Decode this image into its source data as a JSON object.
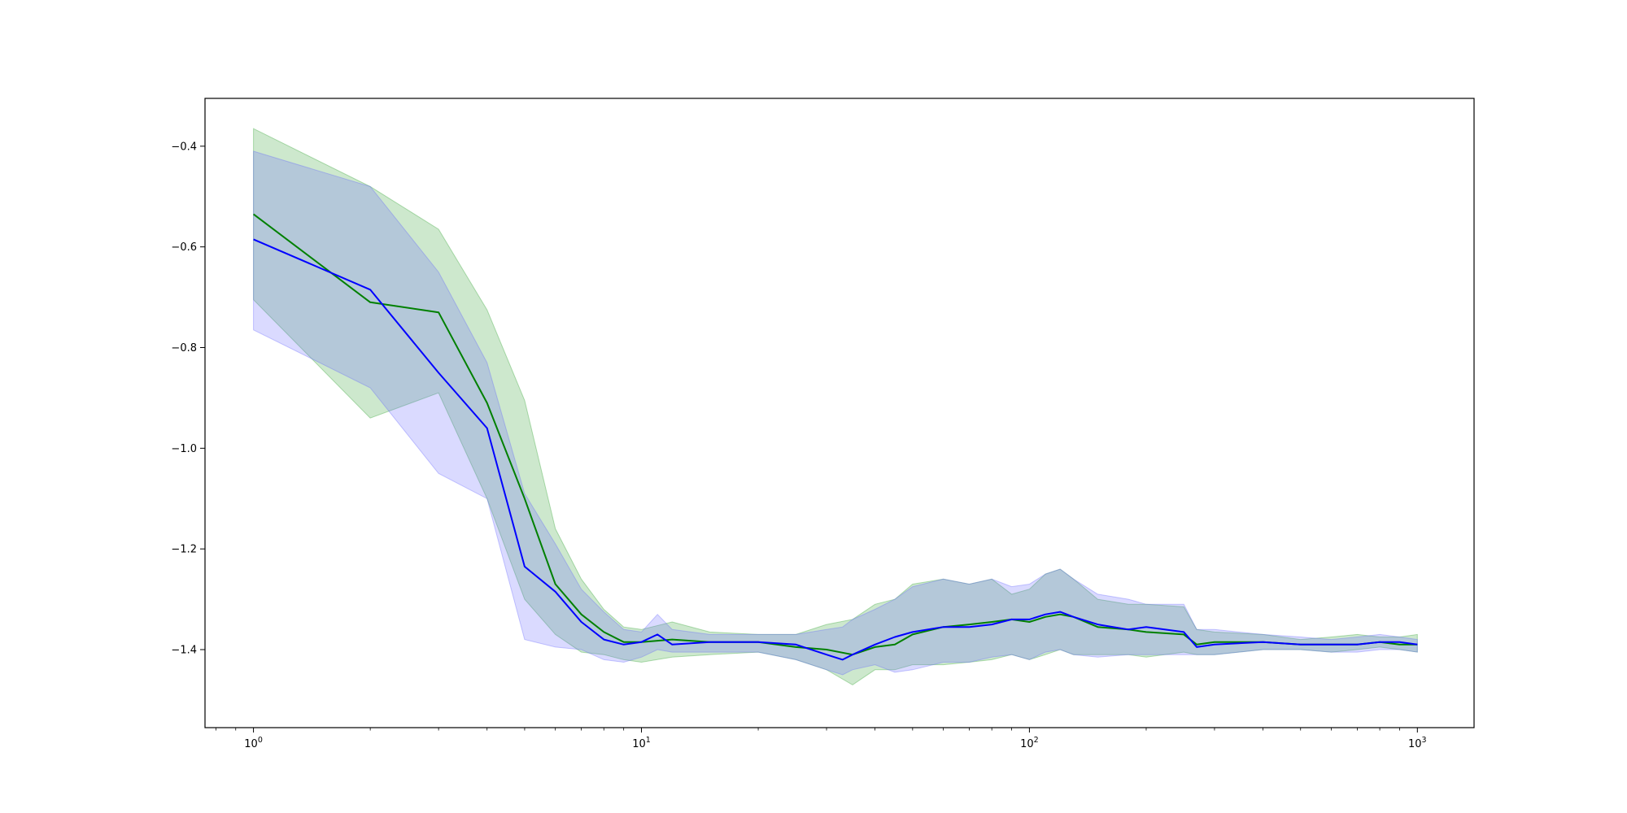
{
  "chart_data": {
    "type": "line",
    "title": "",
    "xlabel": "",
    "ylabel": "",
    "xscale": "log",
    "xlim": [
      0.75,
      1400
    ],
    "ylim": [
      -1.555,
      -0.305
    ],
    "grid": false,
    "legend": "none",
    "xticks": [
      {
        "value": 1,
        "label": "10",
        "exp": "0"
      },
      {
        "value": 10,
        "label": "10",
        "exp": "1"
      },
      {
        "value": 100,
        "label": "10",
        "exp": "2"
      },
      {
        "value": 1000,
        "label": "10",
        "exp": "3"
      }
    ],
    "yticks": [
      {
        "value": -0.4,
        "label": "−0.4"
      },
      {
        "value": -0.6,
        "label": "−0.6"
      },
      {
        "value": -0.8,
        "label": "−0.8"
      },
      {
        "value": -1.0,
        "label": "−1.0"
      },
      {
        "value": -1.2,
        "label": "−1.2"
      },
      {
        "value": -1.4,
        "label": "−1.4"
      }
    ],
    "series": [
      {
        "color": "#008000",
        "band_color": "#2ca02c",
        "x": [
          1,
          2,
          3,
          4,
          5,
          6,
          7,
          8,
          9,
          10,
          12,
          15,
          20,
          25,
          30,
          35,
          40,
          45,
          50,
          60,
          70,
          80,
          90,
          100,
          110,
          120,
          130,
          150,
          180,
          200,
          250,
          270,
          300,
          400,
          500,
          600,
          700,
          800,
          900,
          1000
        ],
        "mean": [
          -0.535,
          -0.71,
          -0.73,
          -0.91,
          -1.1,
          -1.27,
          -1.33,
          -1.365,
          -1.385,
          -1.385,
          -1.38,
          -1.385,
          -1.385,
          -1.395,
          -1.4,
          -1.41,
          -1.395,
          -1.39,
          -1.37,
          -1.355,
          -1.35,
          -1.345,
          -1.34,
          -1.345,
          -1.335,
          -1.33,
          -1.335,
          -1.355,
          -1.36,
          -1.365,
          -1.37,
          -1.39,
          -1.385,
          -1.385,
          -1.39,
          -1.39,
          -1.39,
          -1.385,
          -1.39,
          -1.39
        ],
        "upper": [
          -0.365,
          -0.48,
          -0.565,
          -0.725,
          -0.905,
          -1.16,
          -1.26,
          -1.32,
          -1.355,
          -1.36,
          -1.345,
          -1.365,
          -1.37,
          -1.37,
          -1.35,
          -1.34,
          -1.31,
          -1.3,
          -1.27,
          -1.26,
          -1.27,
          -1.26,
          -1.29,
          -1.28,
          -1.25,
          -1.24,
          -1.26,
          -1.3,
          -1.31,
          -1.31,
          -1.315,
          -1.36,
          -1.365,
          -1.37,
          -1.38,
          -1.375,
          -1.37,
          -1.375,
          -1.375,
          -1.37
        ],
        "lower": [
          -0.705,
          -0.94,
          -0.89,
          -1.1,
          -1.3,
          -1.37,
          -1.405,
          -1.41,
          -1.42,
          -1.425,
          -1.415,
          -1.41,
          -1.405,
          -1.42,
          -1.44,
          -1.47,
          -1.44,
          -1.44,
          -1.43,
          -1.43,
          -1.425,
          -1.42,
          -1.41,
          -1.42,
          -1.41,
          -1.4,
          -1.41,
          -1.41,
          -1.41,
          -1.415,
          -1.405,
          -1.41,
          -1.41,
          -1.4,
          -1.4,
          -1.405,
          -1.4,
          -1.395,
          -1.4,
          -1.405
        ]
      },
      {
        "color": "#0000ff",
        "band_color": "#6464ff",
        "x": [
          1,
          2,
          3,
          4,
          5,
          6,
          7,
          8,
          9,
          10,
          11,
          12,
          15,
          20,
          25,
          30,
          33,
          35,
          40,
          45,
          50,
          60,
          70,
          80,
          90,
          100,
          110,
          120,
          130,
          150,
          180,
          200,
          250,
          270,
          300,
          400,
          500,
          600,
          700,
          800,
          900,
          1000
        ],
        "mean": [
          -0.585,
          -0.685,
          -0.85,
          -0.96,
          -1.235,
          -1.285,
          -1.345,
          -1.38,
          -1.39,
          -1.385,
          -1.37,
          -1.39,
          -1.385,
          -1.385,
          -1.39,
          -1.41,
          -1.42,
          -1.41,
          -1.39,
          -1.375,
          -1.365,
          -1.355,
          -1.355,
          -1.35,
          -1.34,
          -1.34,
          -1.33,
          -1.325,
          -1.335,
          -1.35,
          -1.36,
          -1.355,
          -1.365,
          -1.395,
          -1.39,
          -1.385,
          -1.39,
          -1.39,
          -1.39,
          -1.385,
          -1.385,
          -1.39
        ],
        "upper": [
          -0.41,
          -0.48,
          -0.65,
          -0.83,
          -1.09,
          -1.19,
          -1.28,
          -1.325,
          -1.36,
          -1.365,
          -1.33,
          -1.36,
          -1.37,
          -1.37,
          -1.37,
          -1.36,
          -1.355,
          -1.34,
          -1.32,
          -1.3,
          -1.275,
          -1.26,
          -1.27,
          -1.26,
          -1.275,
          -1.27,
          -1.25,
          -1.24,
          -1.26,
          -1.29,
          -1.3,
          -1.31,
          -1.31,
          -1.36,
          -1.36,
          -1.37,
          -1.375,
          -1.38,
          -1.375,
          -1.37,
          -1.375,
          -1.38
        ],
        "lower": [
          -0.765,
          -0.88,
          -1.05,
          -1.1,
          -1.38,
          -1.395,
          -1.4,
          -1.42,
          -1.425,
          -1.415,
          -1.4,
          -1.405,
          -1.405,
          -1.405,
          -1.42,
          -1.44,
          -1.45,
          -1.44,
          -1.43,
          -1.445,
          -1.44,
          -1.425,
          -1.425,
          -1.415,
          -1.41,
          -1.42,
          -1.405,
          -1.4,
          -1.41,
          -1.415,
          -1.41,
          -1.41,
          -1.41,
          -1.41,
          -1.41,
          -1.4,
          -1.4,
          -1.405,
          -1.405,
          -1.4,
          -1.4,
          -1.405
        ]
      }
    ]
  }
}
